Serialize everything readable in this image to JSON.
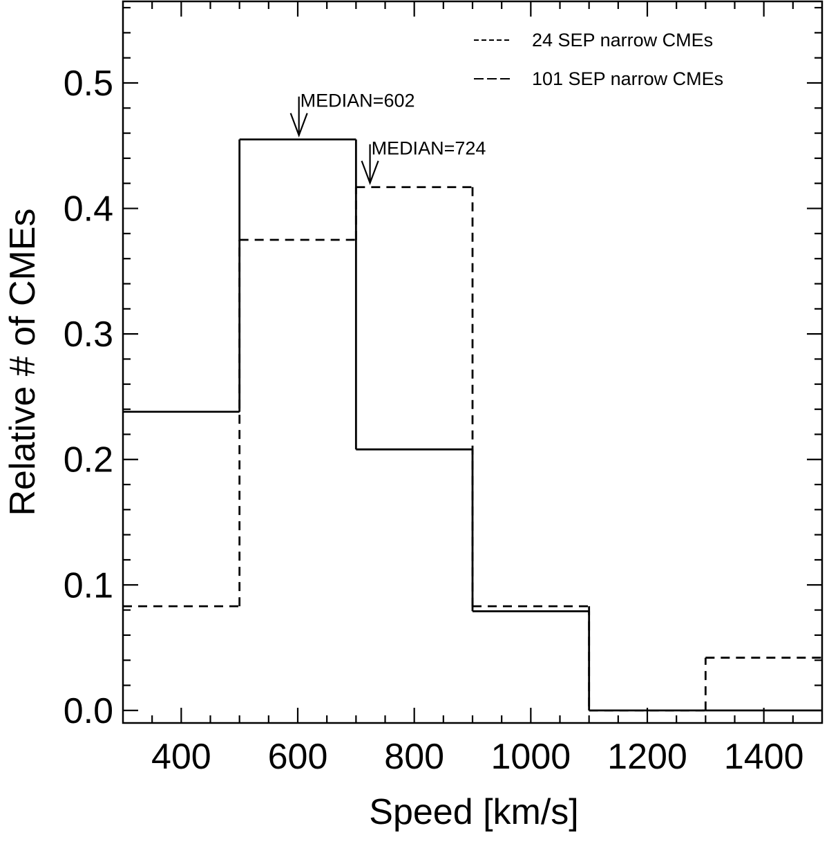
{
  "chart_data": {
    "type": "histogram",
    "title": "",
    "xlabel": "Speed [km/s]",
    "ylabel": "Relative # of CMEs",
    "xlim": [
      300,
      1500
    ],
    "ylim": [
      -0.01,
      0.565
    ],
    "bin_edges": [
      300,
      500,
      700,
      900,
      1100,
      1300,
      1500
    ],
    "x_ticks": [
      400,
      600,
      800,
      1000,
      1200,
      1400
    ],
    "x_tick_labels": [
      "400",
      "600",
      "800",
      "1000",
      "1200",
      "1400"
    ],
    "y_ticks": [
      0.0,
      0.1,
      0.2,
      0.3,
      0.4,
      0.5
    ],
    "y_tick_labels": [
      "0.0",
      "0.1",
      "0.2",
      "0.3",
      "0.4",
      "0.5"
    ],
    "legend_position": "top-right",
    "series": [
      {
        "name": "24 SEP narrow CMEs",
        "line_style": "short-dash",
        "values": [
          0.083,
          0.375,
          0.417,
          0.083,
          0.0,
          0.042
        ]
      },
      {
        "name": "101 SEP narrow CMEs",
        "line_style": "solid",
        "values": [
          0.238,
          0.455,
          0.208,
          0.079,
          0.0,
          0.0
        ]
      }
    ],
    "annotations": [
      {
        "text": "MEDIAN=602",
        "x": 602,
        "y": 0.455,
        "arrow": "down"
      },
      {
        "text": "MEDIAN=724",
        "x": 724,
        "y": 0.417,
        "arrow": "down"
      }
    ]
  }
}
